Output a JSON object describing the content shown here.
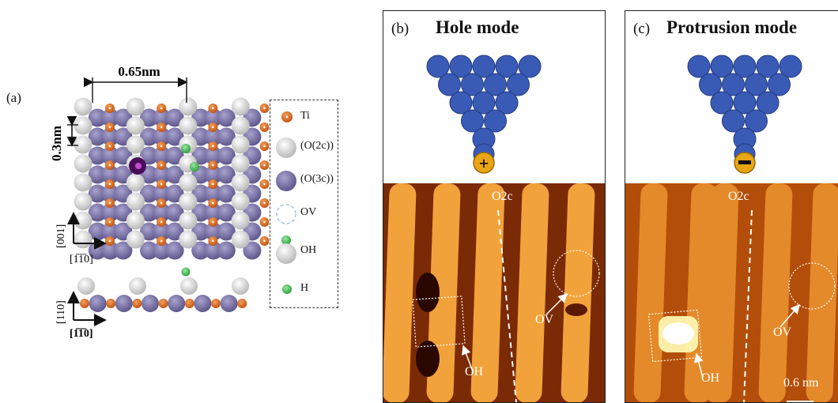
{
  "panel_a": {
    "tag": "(a)",
    "dim_spacing": "0.65nm",
    "dim_row": "0.3nm",
    "axis_top_vertical": "[001]",
    "axis_top_horizontal": "[1̅1̅0]",
    "axis_bottom_vertical": "[110]",
    "axis_bottom_horizontal": "[1̅1̅0]"
  },
  "legend": {
    "items": [
      {
        "label": "Ti",
        "icon": "ti-atom-icon"
      },
      {
        "label": "(O(2c))",
        "icon": "o2c-atom-icon"
      },
      {
        "label": "(O(3c))",
        "icon": "o3c-atom-icon"
      },
      {
        "label": "OV",
        "icon": "vacancy-icon"
      },
      {
        "label": "OH",
        "icon": "hydroxyl-icon"
      },
      {
        "label": "H",
        "icon": "hydrogen-icon"
      }
    ]
  },
  "panel_b": {
    "tag": "(b)",
    "title": "Hole mode",
    "tip_sign": "+",
    "label_o2c": "O2c",
    "label_ov": "OV",
    "label_oh": "OH"
  },
  "panel_c": {
    "tag": "(c)",
    "title": "Protrusion mode",
    "tip_sign": "−",
    "label_o2c": "O2c",
    "label_ov": "OV",
    "label_oh": "OH",
    "scale_bar": "0.6 nm"
  },
  "colors": {
    "ti": "#d9661a",
    "o2c": "#dcdcdc",
    "o3c": "#7b74a8",
    "h": "#4cc35a",
    "tip": "#3a5bb5",
    "tip_sign_bg": "#e8a615",
    "stm_dark": "#3a0e02",
    "stm_light": "#ffe38a"
  }
}
